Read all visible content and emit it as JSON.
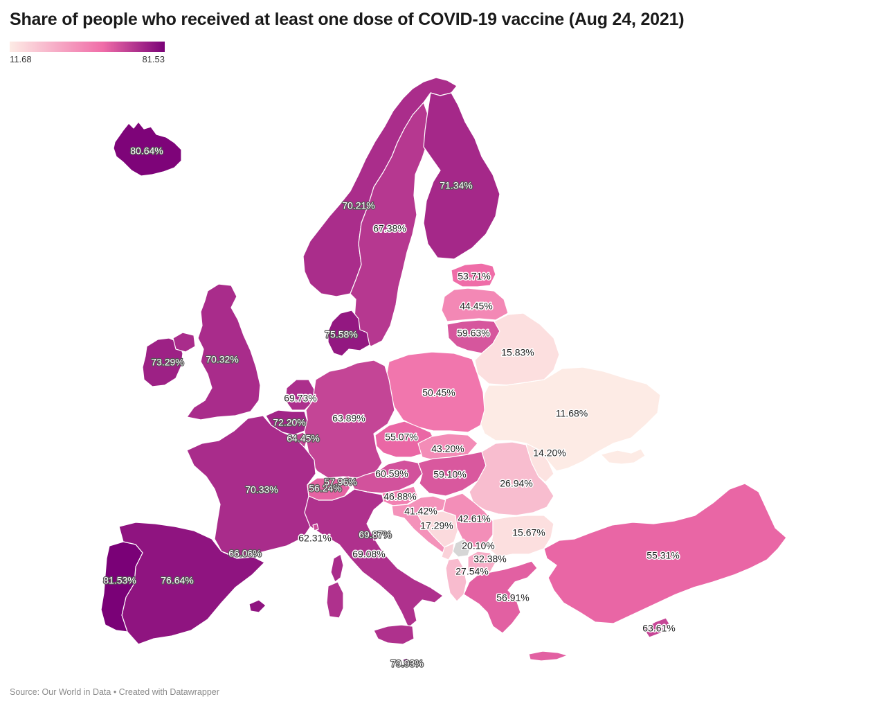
{
  "title": "Share of people who received at least one dose of COVID-19 vaccine (Aug 24, 2021)",
  "legend": {
    "min_label": "11.68",
    "max_label": "81.53",
    "min_value": 11.68,
    "max_value": 81.53,
    "color_low": "#fdebe5",
    "color_mid": "#f06da8",
    "color_high": "#7a0177"
  },
  "source": "Source: Our World in Data • Created with Datawrapper",
  "no_data_color": "#d6d6d6",
  "country_values": {
    "iceland": 80.64,
    "norway": 70.21,
    "sweden": 67.38,
    "finland": 71.34,
    "estonia": 53.71,
    "latvia": 44.45,
    "lithuania": 59.63,
    "belarus": 15.83,
    "denmark": 75.58,
    "ireland": 73.29,
    "united_kingdom": 70.32,
    "netherlands": 69.73,
    "belgium": 72.2,
    "luxembourg": 64.45,
    "germany": 63.89,
    "poland": 50.45,
    "ukraine": 11.68,
    "moldova": 14.2,
    "czechia": 55.07,
    "slovakia": 43.2,
    "france": 70.33,
    "switzerland": 56.24,
    "liechtenstein": 57.96,
    "austria": 60.59,
    "hungary": 59.1,
    "romania": 26.94,
    "slovenia": 46.88,
    "croatia": 41.42,
    "bosnia": 17.29,
    "serbia": 42.61,
    "montenegro": 20.1,
    "kosovo": null,
    "north_macedonia": 32.38,
    "albania": 27.54,
    "bulgaria": 15.67,
    "greece": 56.91,
    "turkey": 55.31,
    "cyprus": 63.61,
    "italy": 69.08,
    "san_marino": 69.87,
    "monaco": 62.31,
    "andorra": 66.06,
    "spain": 76.64,
    "portugal": 81.53,
    "malta": 79.93
  },
  "labels": {
    "iceland": "80.64%",
    "norway": "70.21%",
    "sweden": "67.38%",
    "finland": "71.34%",
    "estonia": "53.71%",
    "latvia": "44.45%",
    "lithuania": "59.63%",
    "belarus": "15.83%",
    "denmark": "75.58%",
    "ireland": "73.29%",
    "united_kingdom": "70.32%",
    "netherlands": "69.73%",
    "belgium": "72.20%",
    "luxembourg": "64.45%",
    "germany": "63.89%",
    "poland": "50.45%",
    "ukraine": "11.68%",
    "moldova": "14.20%",
    "czechia": "55.07%",
    "slovakia": "43.20%",
    "france": "70.33%",
    "switzerland": "56.24%",
    "liechtenstein": "57.96%",
    "austria": "60.59%",
    "hungary": "59.10%",
    "romania": "26.94%",
    "slovenia": "46.88%",
    "croatia": "41.42%",
    "bosnia": "17.29%",
    "serbia": "42.61%",
    "montenegro": "20.10%",
    "north_macedonia": "32.38%",
    "albania": "27.54%",
    "bulgaria": "15.67%",
    "greece": "56.91%",
    "turkey": "55.31%",
    "cyprus": "63.61%",
    "italy": "69.08%",
    "san_marino": "69.87%",
    "monaco": "62.31%",
    "andorra": "66.06%",
    "spain": "76.64%",
    "portugal": "81.53%",
    "malta": "79.93%"
  }
}
